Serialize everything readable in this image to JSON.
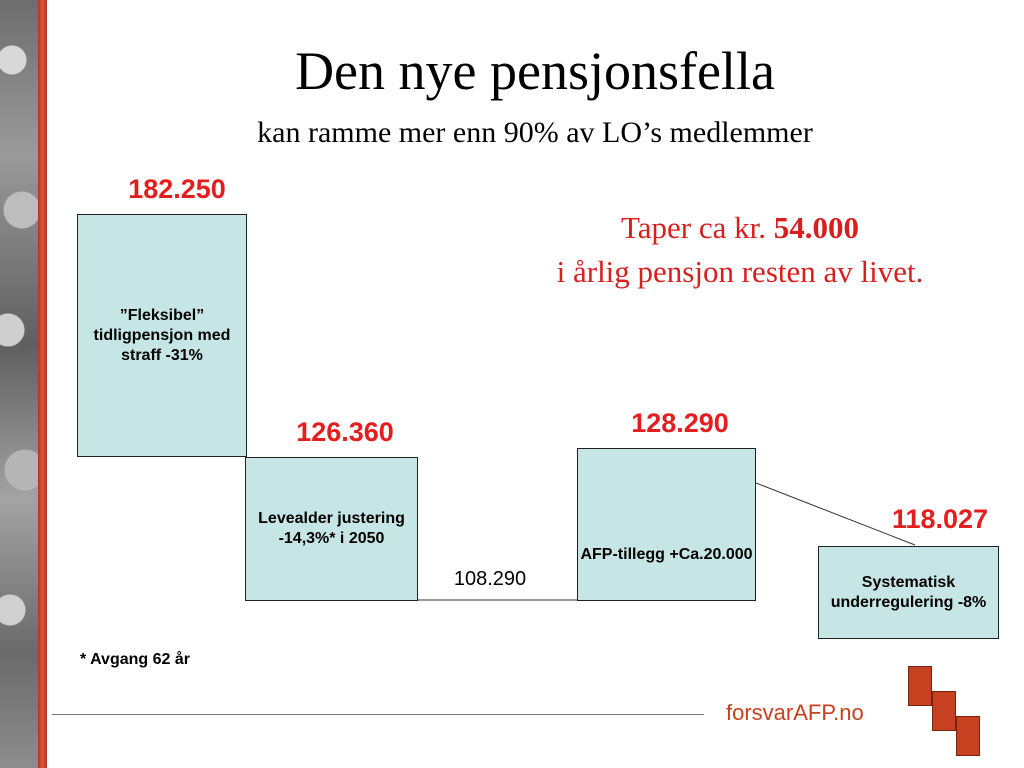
{
  "header": {
    "title": "Den nye pensjonsfella",
    "subtitle": "kan ramme mer enn 90% av LO’s medlemmer"
  },
  "callout": {
    "line1_prefix": "Taper ca kr.",
    "line1_amount": "54.000",
    "line2": "i årlig pensjon resten av livet."
  },
  "footnote": "* Avgang 62 år",
  "brand": "forsvarAFP.no",
  "colors": {
    "box_fill": "#c6e6e6",
    "value_red": "#e41e1e",
    "brand": "#c7401f"
  },
  "chart_data": {
    "type": "bar",
    "subtype": "waterfall",
    "ylim": [
      90000,
      190000
    ],
    "baseline": 108290,
    "steps": [
      {
        "label": "”Fleksibel” tidligpensjon med straff -31%",
        "start": 126360,
        "end": 182250,
        "value_label": "182.250"
      },
      {
        "label": "Levealder justering -14,3%* i 2050",
        "start": 108290,
        "end": 126360,
        "value_label": "126.360"
      },
      {
        "label": "",
        "start": 108290,
        "end": 108290,
        "value_label": "108.290"
      },
      {
        "label": "AFP-tillegg +Ca.20.000",
        "start": 108290,
        "end": 128290,
        "value_label": "128.290"
      },
      {
        "label": "Systematisk underregulering -8%",
        "start": 101000,
        "end": 118027,
        "value_label": "118.027"
      }
    ]
  }
}
